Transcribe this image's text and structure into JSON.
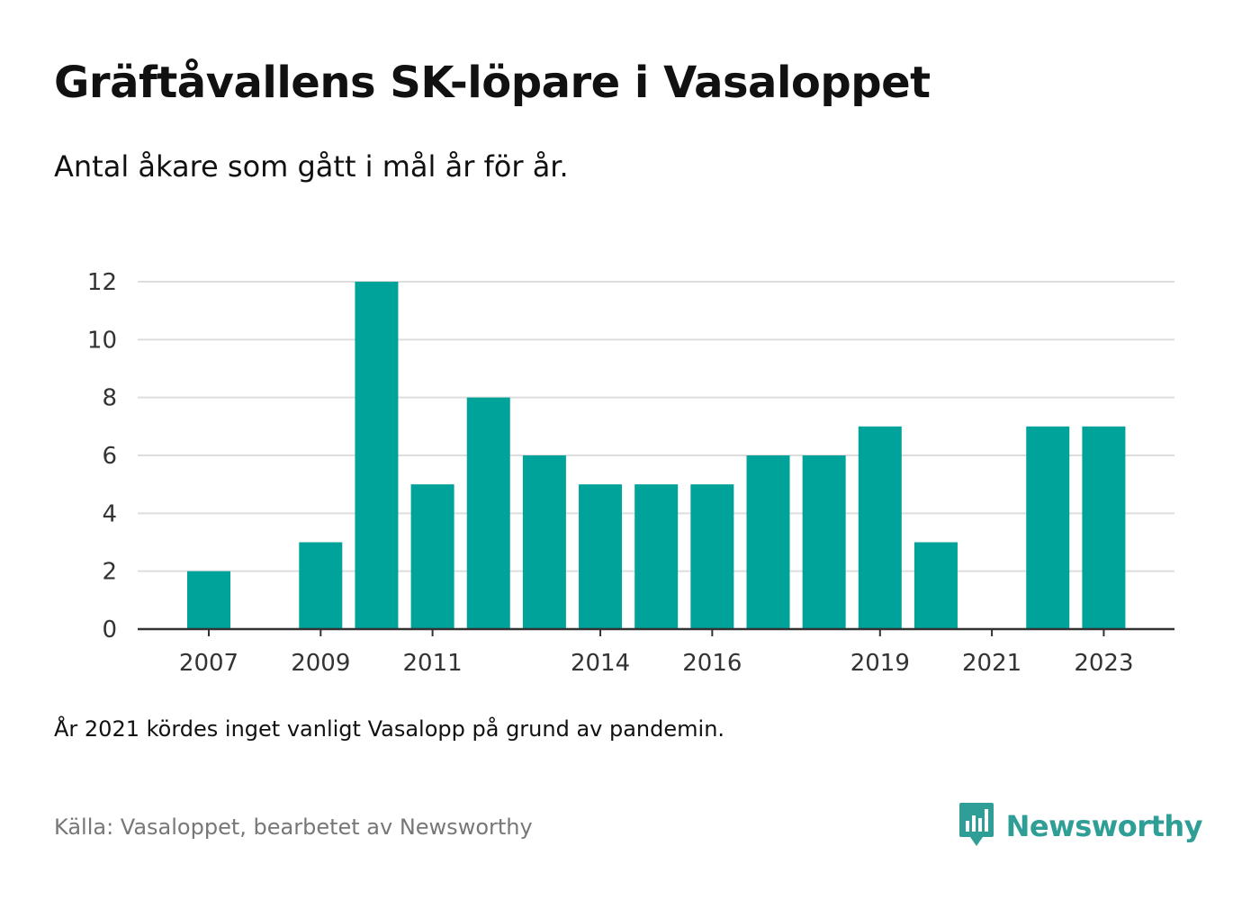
{
  "title": "Gräftåvallens SK-löpare i Vasaloppet",
  "subtitle": "Antal åkare som gått i mål år för år.",
  "note": "År 2021 kördes inget vanligt Vasalopp på grund av pandemin.",
  "source": "Källa: Vasaloppet, bearbetet av Newsworthy",
  "brand": {
    "name": "Newsworthy",
    "logo_icon": "newsworthy-bar-chart-icon"
  },
  "colors": {
    "bar": "#00a39a",
    "grid": "#dddddd",
    "axis": "#333333",
    "brand": "#2e9e96"
  },
  "chart_data": {
    "type": "bar",
    "categories": [
      "2007",
      "2008",
      "2009",
      "2010",
      "2011",
      "2012",
      "2013",
      "2014",
      "2015",
      "2016",
      "2017",
      "2018",
      "2019",
      "2020",
      "2021",
      "2022",
      "2023"
    ],
    "values": [
      2,
      0,
      3,
      12,
      5,
      8,
      6,
      5,
      5,
      5,
      6,
      6,
      7,
      3,
      0,
      7,
      7
    ],
    "x_tick_labels": [
      "2007",
      "2009",
      "2011",
      "2014",
      "2016",
      "2019",
      "2021",
      "2023"
    ],
    "y_ticks": [
      0,
      2,
      4,
      6,
      8,
      10,
      12
    ],
    "ylim": [
      0,
      12
    ],
    "grid": true,
    "xlabel": "",
    "ylabel": ""
  }
}
